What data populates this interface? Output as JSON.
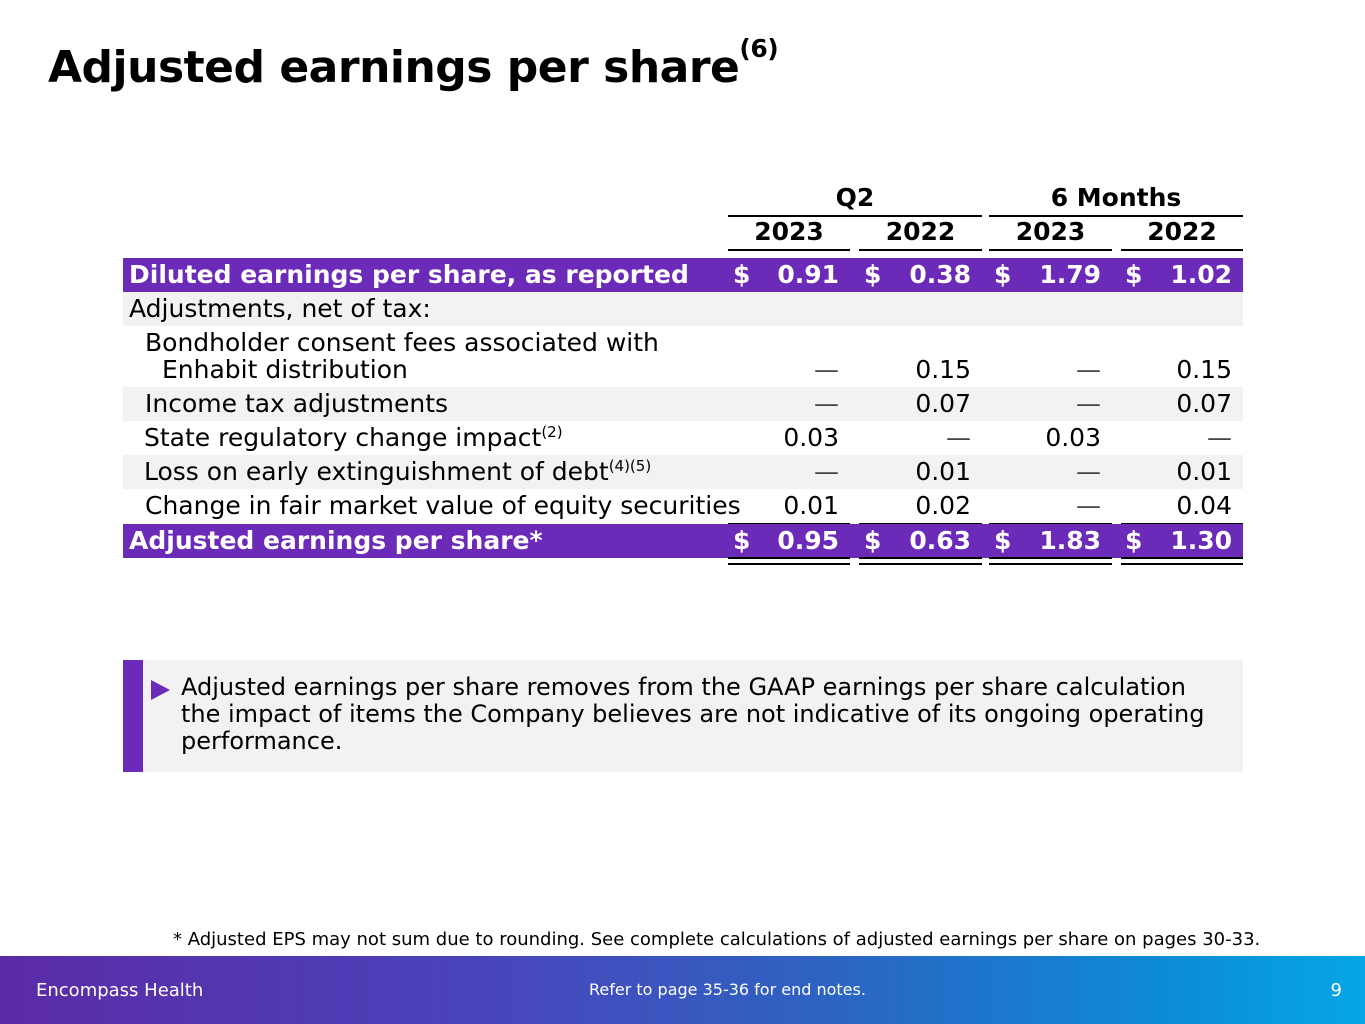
{
  "title": "Adjusted earnings per share",
  "title_footnote": "(6)",
  "column_groups": [
    "Q2",
    "6 Months"
  ],
  "column_years": [
    "2023",
    "2022",
    "2023",
    "2022"
  ],
  "rows": [
    {
      "label": "Diluted earnings per share, as reported",
      "style": "purple",
      "values": [
        "0.91",
        "0.38",
        "1.79",
        "1.02"
      ],
      "currency": "$"
    },
    {
      "label": "Adjustments, net of tax:",
      "style": "gray",
      "values": [
        "",
        "",
        "",
        ""
      ]
    },
    {
      "label_line1": "Bondholder consent fees associated with",
      "label_line2": "Enhabit distribution",
      "style": "white",
      "values": [
        "—",
        "0.15",
        "—",
        "0.15"
      ]
    },
    {
      "label": "Income tax adjustments",
      "style": "gray",
      "values": [
        "—",
        "0.07",
        "—",
        "0.07"
      ]
    },
    {
      "label": "State regulatory change impact",
      "footnote": "(2)",
      "style": "white",
      "values": [
        "0.03",
        "—",
        "0.03",
        "—"
      ]
    },
    {
      "label": "Loss on early extinguishment of debt",
      "footnote": "(4)(5)",
      "style": "gray",
      "values": [
        "—",
        "0.01",
        "—",
        "0.01"
      ]
    },
    {
      "label": "Change in fair market value of equity securities",
      "style": "white",
      "values": [
        "0.01",
        "0.02",
        "—",
        "0.04"
      ]
    },
    {
      "label": "Adjusted earnings per share*",
      "style": "purple",
      "values": [
        "0.95",
        "0.63",
        "1.83",
        "1.30"
      ],
      "currency": "$"
    }
  ],
  "callout": {
    "text": "Adjusted earnings per share removes from the GAAP earnings per share calculation the impact of items the Company believes are not indicative of its ongoing operating performance."
  },
  "footnote": "*  Adjusted EPS may not sum due to rounding. See complete calculations of adjusted earnings per share on pages 30-33.",
  "footer": {
    "brand": "Encompass Health",
    "note": "Refer to page 35-36  for end notes.",
    "page": "9"
  },
  "colors": {
    "accent_purple": "#6b2ab8",
    "row_gray": "#f2f2f2",
    "footer_gradient_start": "#5b2aa7",
    "footer_gradient_end": "#06a6e6"
  }
}
